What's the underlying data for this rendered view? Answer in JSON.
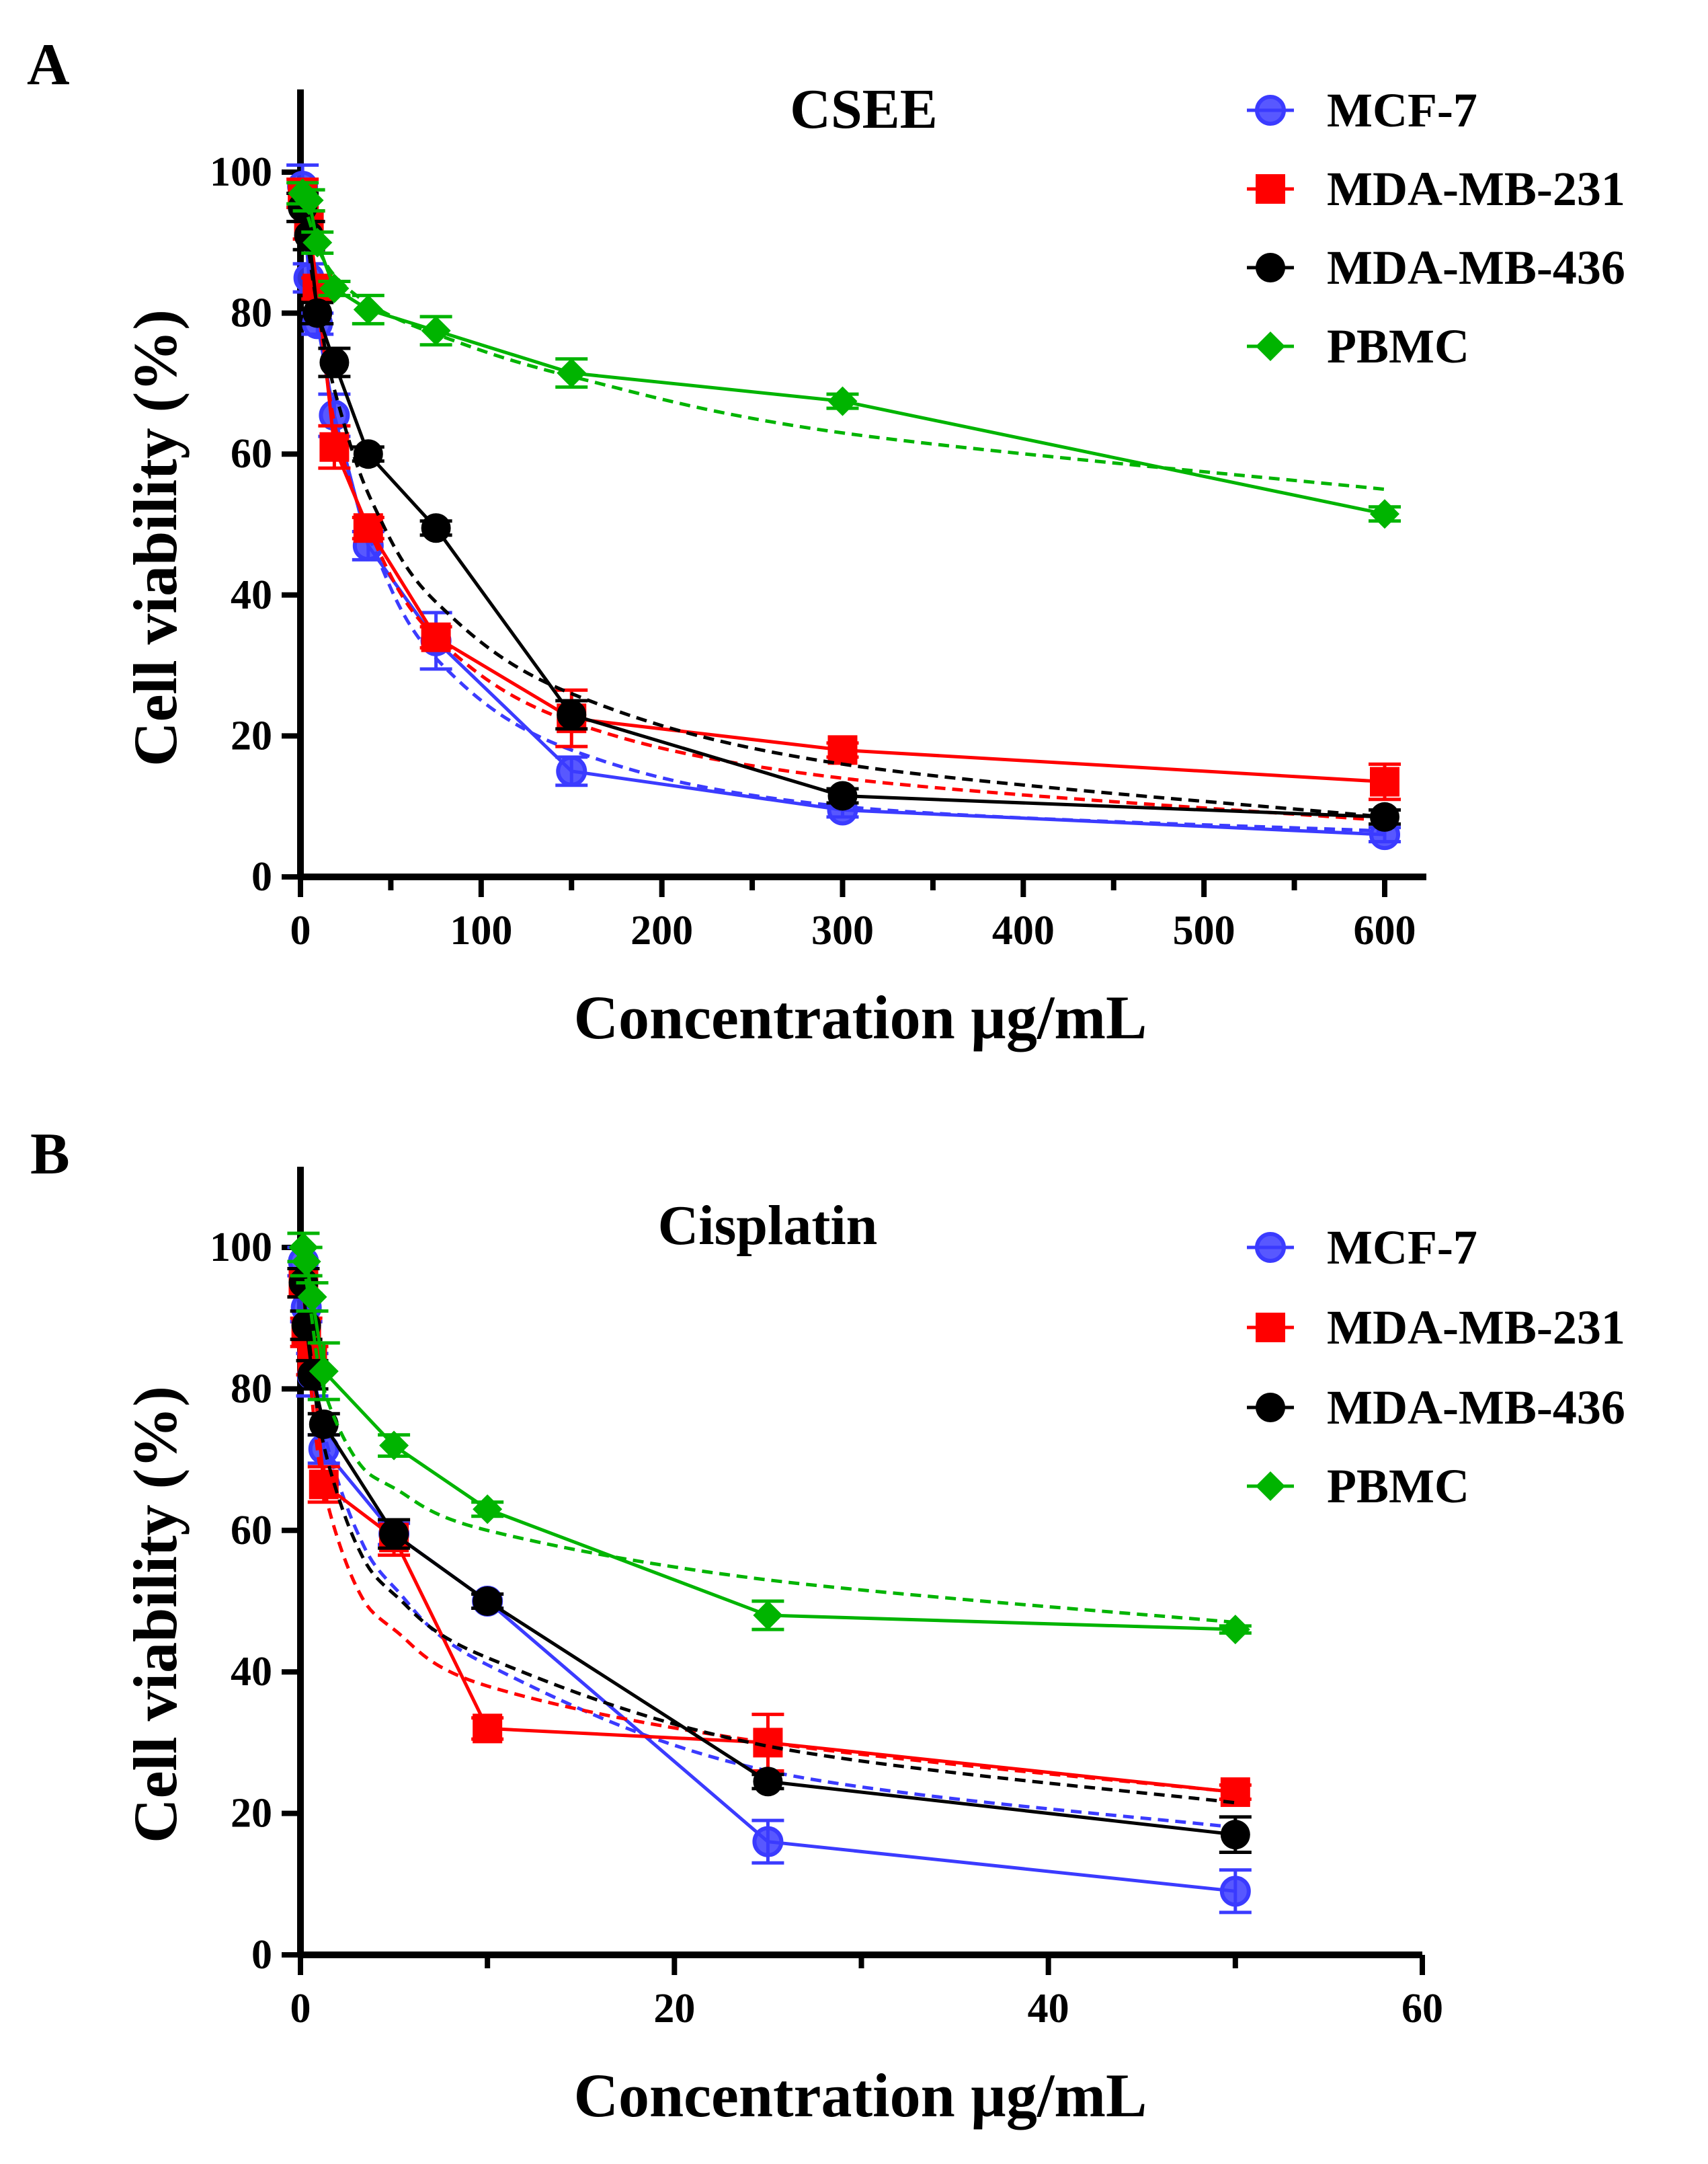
{
  "chart_data": [
    {
      "panel_label": "A",
      "type": "line",
      "title": "CSEE",
      "xlabel": "Concentration µg/mL",
      "ylabel": "Cell viability (%)",
      "xlim": [
        0,
        620
      ],
      "ylim": [
        0,
        110
      ],
      "xticks": [
        0,
        100,
        200,
        300,
        400,
        500,
        600
      ],
      "xminor": [
        50,
        150,
        250,
        350,
        450,
        550
      ],
      "yticks": [
        0,
        20,
        40,
        60,
        80,
        100
      ],
      "grid": false,
      "legend_placement": "top-right",
      "x": [
        1.17,
        4.69,
        9.38,
        18.75,
        37.5,
        75,
        150,
        300,
        600
      ],
      "series": [
        {
          "name": "MCF-7",
          "color": "#3b3bff",
          "marker": "circle",
          "values": [
            98,
            85,
            78.5,
            65.5,
            47,
            33.5,
            15,
            9.5,
            6
          ],
          "err": [
            3,
            2,
            1.5,
            3,
            2,
            4,
            2,
            1,
            1
          ],
          "fit": [
            [
              1.17,
              97
            ],
            [
              5,
              86
            ],
            [
              10,
              78
            ],
            [
              20,
              64
            ],
            [
              40,
              47
            ],
            [
              75,
              31
            ],
            [
              150,
              18
            ],
            [
              300,
              10
            ],
            [
              600,
              6.5
            ]
          ]
        },
        {
          "name": "MDA-MB-231",
          "color": "#ff0000",
          "marker": "square",
          "values": [
            97,
            92.5,
            83.5,
            61,
            49.5,
            34,
            22.5,
            18,
            13.5
          ],
          "err": [
            2,
            2,
            1.5,
            3,
            1.5,
            1.5,
            4,
            1,
            2.5
          ],
          "fit": [
            [
              1.17,
              96
            ],
            [
              5,
              88
            ],
            [
              10,
              80
            ],
            [
              20,
              63
            ],
            [
              40,
              48
            ],
            [
              75,
              34
            ],
            [
              150,
              22
            ],
            [
              300,
              14
            ],
            [
              600,
              8
            ]
          ]
        },
        {
          "name": "MDA-MB-436",
          "color": "#000000",
          "marker": "circle",
          "values": [
            95,
            91,
            80,
            73,
            60,
            49.5,
            23,
            11.5,
            8.5
          ],
          "err": [
            2,
            2,
            1.5,
            2,
            1,
            1,
            2,
            1,
            1
          ],
          "fit": [
            [
              1.17,
              96
            ],
            [
              5,
              88
            ],
            [
              10,
              80
            ],
            [
              20,
              68
            ],
            [
              40,
              53
            ],
            [
              75,
              39
            ],
            [
              150,
              26
            ],
            [
              300,
              16
            ],
            [
              600,
              8.5
            ]
          ]
        },
        {
          "name": "PBMC",
          "color": "#00b400",
          "marker": "diamond",
          "values": [
            97,
            96,
            90,
            83.5,
            80.5,
            77.5,
            71.5,
            67.5,
            51.5
          ],
          "err": [
            1.5,
            1.5,
            1.5,
            1,
            2,
            2,
            2,
            1,
            1
          ],
          "fit": [
            [
              1.17,
              96
            ],
            [
              5,
              93
            ],
            [
              10,
              89
            ],
            [
              20,
              85
            ],
            [
              40,
              81
            ],
            [
              75,
              77
            ],
            [
              150,
              71
            ],
            [
              300,
              63
            ],
            [
              600,
              55
            ]
          ]
        }
      ]
    },
    {
      "panel_label": "B",
      "type": "line",
      "title": "Cisplatin",
      "xlabel": "Concentration µg/mL",
      "ylabel": "Cell viability (%)",
      "xlim": [
        0,
        60
      ],
      "ylim": [
        0,
        110
      ],
      "xticks": [
        0,
        20,
        40,
        60
      ],
      "xminor": [
        10,
        30,
        50
      ],
      "yticks": [
        0,
        20,
        40,
        60,
        80,
        100
      ],
      "grid": false,
      "legend_placement": "top-right",
      "x": [
        0.16,
        0.31,
        0.63,
        1.25,
        5,
        10,
        25,
        50
      ],
      "series": [
        {
          "name": "MCF-7",
          "color": "#3b3bff",
          "marker": "circle",
          "values": [
            98,
            91.5,
            82,
            71.5,
            59.5,
            50,
            16,
            9
          ],
          "err": [
            2,
            2,
            3,
            2,
            1.5,
            1,
            3,
            3
          ],
          "fit": [
            [
              0.16,
              97
            ],
            [
              0.5,
              88
            ],
            [
              1.25,
              74
            ],
            [
              3,
              60
            ],
            [
              5,
              52
            ],
            [
              10,
              41
            ],
            [
              25,
              26
            ],
            [
              50,
              18
            ]
          ]
        },
        {
          "name": "MDA-MB-231",
          "color": "#ff0000",
          "marker": "square",
          "values": [
            95,
            88,
            84,
            66.5,
            59,
            32,
            30,
            23
          ],
          "err": [
            2,
            2,
            2,
            2.5,
            2.5,
            1.5,
            4,
            1
          ],
          "fit": [
            [
              0.16,
              95
            ],
            [
              0.5,
              82
            ],
            [
              1.25,
              66
            ],
            [
              3,
              52
            ],
            [
              5,
              46
            ],
            [
              10,
              38
            ],
            [
              25,
              30
            ],
            [
              50,
              23
            ]
          ]
        },
        {
          "name": "MDA-MB-436",
          "color": "#000000",
          "marker": "circle",
          "values": [
            95,
            89,
            82,
            75,
            59.5,
            50,
            24.5,
            17
          ],
          "err": [
            2,
            2,
            2,
            1.5,
            2,
            1,
            1,
            2.5
          ],
          "fit": [
            [
              0.16,
              96
            ],
            [
              0.5,
              86
            ],
            [
              1.25,
              72
            ],
            [
              3,
              58
            ],
            [
              5,
              51
            ],
            [
              10,
              42
            ],
            [
              25,
              29.5
            ],
            [
              50,
              21.5
            ]
          ]
        },
        {
          "name": "PBMC",
          "color": "#00b400",
          "marker": "diamond",
          "values": [
            100,
            98,
            93,
            82.5,
            72,
            63,
            48,
            46
          ],
          "err": [
            2,
            2,
            2,
            4,
            1.5,
            1,
            2,
            0.5
          ],
          "fit": [
            [
              0.16,
              98
            ],
            [
              0.5,
              92
            ],
            [
              1.25,
              80
            ],
            [
              3,
              70
            ],
            [
              5,
              66
            ],
            [
              10,
              60
            ],
            [
              25,
              53
            ],
            [
              50,
              47
            ]
          ]
        }
      ]
    }
  ]
}
